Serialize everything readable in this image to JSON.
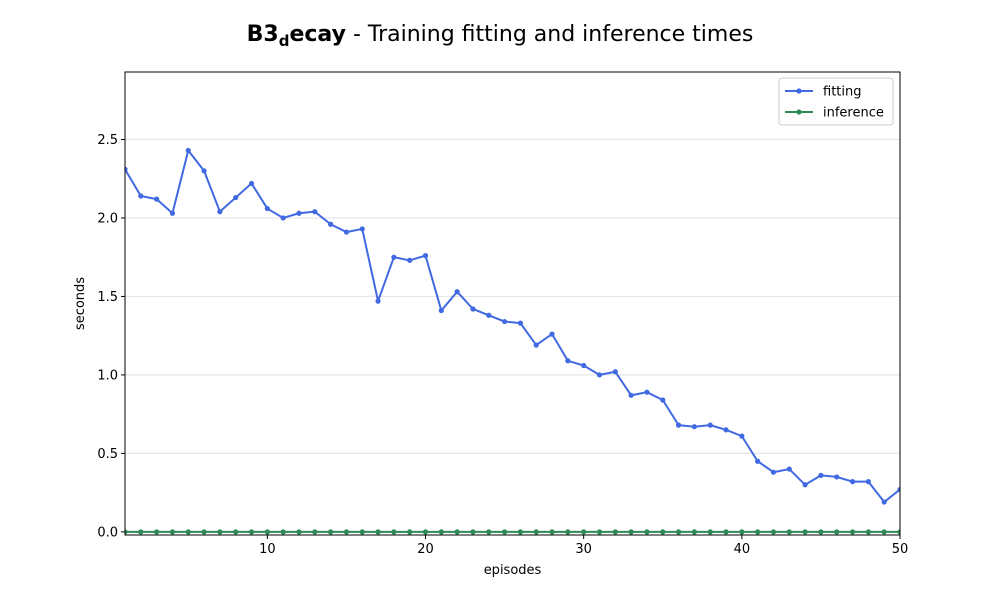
{
  "title": {
    "bold_main": "B3",
    "bold_sub": "d",
    "bold_tail": "ecay",
    "rest": " - Training fitting and inference times"
  },
  "chart_data": {
    "type": "line",
    "xlabel": "episodes",
    "ylabel": "seconds",
    "xlim": [
      1,
      50
    ],
    "ylim": [
      -0.02,
      2.93
    ],
    "x_ticks": [
      10,
      20,
      30,
      40,
      50
    ],
    "y_ticks": [
      0.0,
      0.5,
      1.0,
      1.5,
      2.0,
      2.5
    ],
    "grid": "horizontal",
    "legend_position": "top-right",
    "x": [
      1,
      2,
      3,
      4,
      5,
      6,
      7,
      8,
      9,
      10,
      11,
      12,
      13,
      14,
      15,
      16,
      17,
      18,
      19,
      20,
      21,
      22,
      23,
      24,
      25,
      26,
      27,
      28,
      29,
      30,
      31,
      32,
      33,
      34,
      35,
      36,
      37,
      38,
      39,
      40,
      41,
      42,
      43,
      44,
      45,
      46,
      47,
      48,
      49,
      50
    ],
    "series": [
      {
        "name": "fitting",
        "color": "#4169e1",
        "values": [
          2.31,
          2.14,
          2.12,
          2.03,
          2.43,
          2.3,
          2.04,
          2.13,
          2.22,
          2.06,
          2.0,
          2.03,
          2.04,
          1.96,
          1.91,
          1.93,
          1.47,
          1.75,
          1.73,
          1.76,
          1.41,
          1.53,
          1.42,
          1.38,
          1.34,
          1.33,
          1.19,
          1.26,
          1.09,
          1.06,
          1.0,
          1.02,
          0.87,
          0.89,
          0.84,
          0.68,
          0.67,
          0.68,
          0.65,
          0.61,
          0.45,
          0.38,
          0.4,
          0.3,
          0.36,
          0.35,
          0.32,
          0.32,
          0.19,
          0.27
        ]
      },
      {
        "name": "inference",
        "color": "#2e8b57",
        "values": [
          0.0,
          0.0,
          0.0,
          0.0,
          0.0,
          0.0,
          0.0,
          0.0,
          0.0,
          0.0,
          0.0,
          0.0,
          0.0,
          0.0,
          0.0,
          0.0,
          0.0,
          0.0,
          0.0,
          0.0,
          0.0,
          0.0,
          0.0,
          0.0,
          0.0,
          0.0,
          0.0,
          0.0,
          0.0,
          0.0,
          0.0,
          0.0,
          0.0,
          0.0,
          0.0,
          0.0,
          0.0,
          0.0,
          0.0,
          0.0,
          0.0,
          0.0,
          0.0,
          0.0,
          0.0,
          0.0,
          0.0,
          0.0,
          0.0,
          0.0
        ]
      }
    ]
  }
}
